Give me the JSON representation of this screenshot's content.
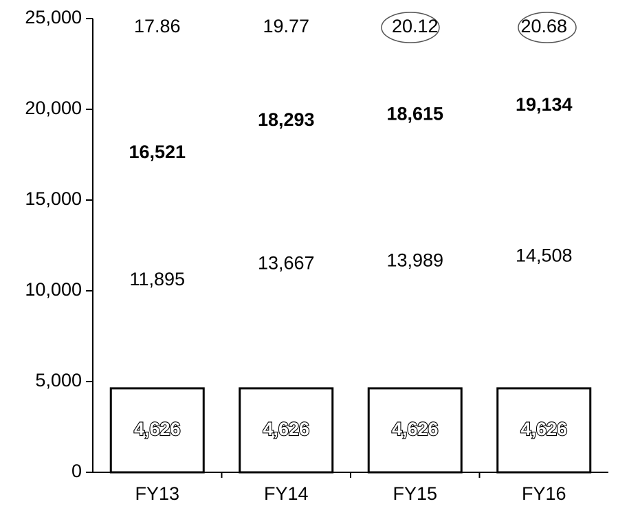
{
  "chart_data": {
    "type": "stacked_bar",
    "categories": [
      "FY13",
      "FY14",
      "FY15",
      "FY16"
    ],
    "series": [
      {
        "color": "#ffffff",
        "values": [
          4626,
          4626,
          4626,
          4626
        ],
        "value_labels": [
          "4,626",
          "4,626",
          "4,626",
          "4,626"
        ]
      },
      {
        "color": "none",
        "values": [
          11895,
          13667,
          13989,
          14508
        ],
        "value_labels": [
          "11,895",
          "13,667",
          "13,989",
          "14,508"
        ]
      }
    ],
    "totals": [
      16521,
      18293,
      18615,
      19134
    ],
    "total_labels": [
      "16,521",
      "18,293",
      "18,615",
      "19,134"
    ],
    "ratios": [
      17.86,
      19.77,
      20.12,
      20.68
    ],
    "ylim": [
      0,
      25000
    ],
    "yticks": [
      0,
      {
        "value": 5000,
        "label": "5,000"
      },
      {
        "value": 10000,
        "label": "10,000"
      },
      {
        "value": 15000,
        "label": "15,000"
      },
      {
        "value": 20000,
        "label": "20,000"
      },
      {
        "value": 25000,
        "label": "25,000"
      }
    ],
    "grid": false
  }
}
